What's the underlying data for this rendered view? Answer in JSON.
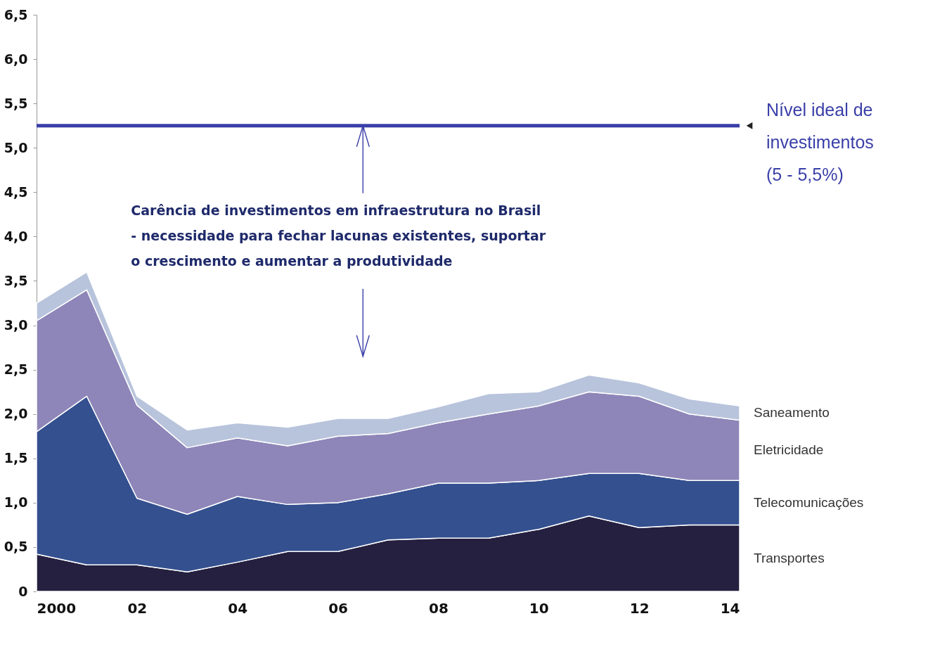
{
  "chart_data": {
    "type": "area",
    "stacked": true,
    "x": [
      2000,
      2001,
      2002,
      2003,
      2004,
      2005,
      2006,
      2007,
      2008,
      2009,
      2010,
      2011,
      2012,
      2013,
      2014
    ],
    "series": [
      {
        "name": "Transportes",
        "color": "#25203f",
        "values": [
          0.42,
          0.3,
          0.3,
          0.22,
          0.33,
          0.45,
          0.45,
          0.58,
          0.6,
          0.6,
          0.7,
          0.85,
          0.72,
          0.75,
          0.75
        ]
      },
      {
        "name": "Telecomunicações",
        "color": "#34508f",
        "values": [
          1.38,
          1.9,
          0.75,
          0.65,
          0.74,
          0.53,
          0.55,
          0.52,
          0.62,
          0.62,
          0.55,
          0.48,
          0.61,
          0.5,
          0.5
        ]
      },
      {
        "name": "Eletricidade",
        "color": "#8e86b8",
        "values": [
          1.25,
          1.2,
          1.05,
          0.75,
          0.66,
          0.66,
          0.75,
          0.68,
          0.68,
          0.78,
          0.84,
          0.92,
          0.87,
          0.75,
          0.68
        ]
      },
      {
        "name": "Saneamento",
        "color": "#b8c4dc",
        "values": [
          0.2,
          0.2,
          0.1,
          0.2,
          0.17,
          0.21,
          0.2,
          0.17,
          0.18,
          0.23,
          0.16,
          0.19,
          0.15,
          0.17,
          0.16
        ]
      }
    ],
    "xlim": [
      2000,
      2014
    ],
    "xticks": [
      {
        "value": 2000,
        "label": "2000"
      },
      {
        "value": 2002,
        "label": "02"
      },
      {
        "value": 2004,
        "label": "04"
      },
      {
        "value": 2006,
        "label": "06"
      },
      {
        "value": 2008,
        "label": "08"
      },
      {
        "value": 2010,
        "label": "10"
      },
      {
        "value": 2012,
        "label": "12"
      },
      {
        "value": 2014,
        "label": "14"
      }
    ],
    "ylim": [
      0,
      6.5
    ],
    "yticks": [
      0,
      {
        "value": 0.5,
        "label": "0,5"
      },
      {
        "value": 1,
        "label": "1,0"
      },
      {
        "value": 1.5,
        "label": "1,5"
      },
      {
        "value": 2,
        "label": "2,0"
      },
      {
        "value": 2.5,
        "label": "2,5"
      },
      {
        "value": 3,
        "label": "3,0"
      },
      {
        "value": 3.5,
        "label": "3,5"
      },
      {
        "value": 4,
        "label": "4,0"
      },
      {
        "value": 4.5,
        "label": "4,5"
      },
      {
        "value": 5,
        "label": "5,0"
      },
      {
        "value": 5.5,
        "label": "5,5"
      },
      {
        "value": 6,
        "label": "6,0"
      },
      {
        "value": 6.5,
        "label": "6,5"
      }
    ],
    "ref_lines": [
      {
        "axis": "y",
        "value": 5.25,
        "label": "Nível ideal de investimentos (5 - 5,5%)",
        "color": "#3a3fa8"
      }
    ],
    "annotations": [
      {
        "text": "Carência de investimentos em infraestrutura no Brasil - necessidade para fechar lacunas existentes, suportar o crescimento e aumentar a produtividade",
        "x": 2006.5,
        "y": 5.25
      }
    ]
  }
}
